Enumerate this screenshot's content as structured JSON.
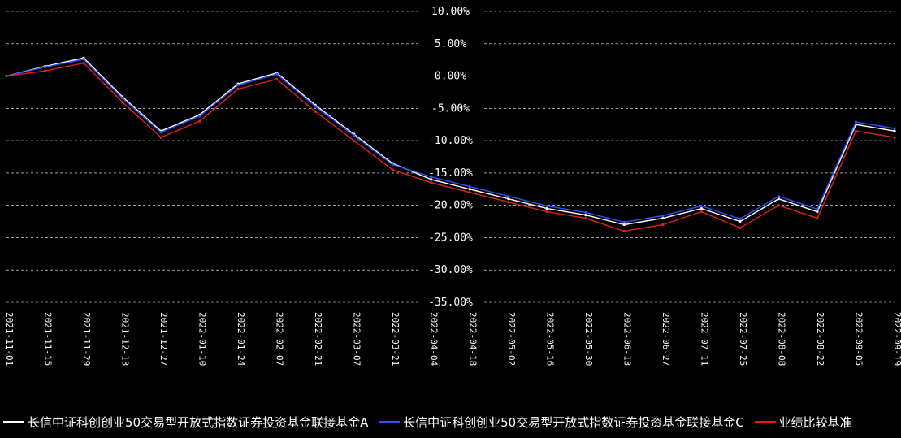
{
  "chart_data": {
    "type": "line",
    "title": "",
    "xlabel": "",
    "ylabel": "",
    "ylim": [
      -35,
      10
    ],
    "yticks": [
      "10.00%",
      "5.00%",
      "0.00%",
      "-5.00%",
      "-10.00%",
      "-15.00%",
      "-20.00%",
      "-25.00%",
      "-30.00%",
      "-35.00%"
    ],
    "ytick_values": [
      10,
      5,
      0,
      -5,
      -10,
      -15,
      -20,
      -25,
      -30,
      -35
    ],
    "grid": true,
    "legend_position": "bottom",
    "x": [
      "2021-11-01",
      "2021-11-15",
      "2021-11-29",
      "2021-12-13",
      "2021-12-27",
      "2022-01-10",
      "2022-01-24",
      "2022-02-07",
      "2022-02-21",
      "2022-03-07",
      "2022-03-21",
      "2022-04-04",
      "2022-04-18",
      "2022-05-02",
      "2022-05-16",
      "2022-05-30",
      "2022-06-13",
      "2022-06-27",
      "2022-07-11",
      "2022-07-25",
      "2022-08-08",
      "2022-08-22",
      "2022-09-05",
      "2022-09-19"
    ],
    "series": [
      {
        "name": "长信中证科创创业50交易型开放式指数证券投资基金联接基金A",
        "color": "#ffffff",
        "values": [
          0,
          1.5,
          2.8,
          -3.2,
          -8.5,
          -6.0,
          -1.2,
          0.5,
          -4.5,
          -9.0,
          -13.5,
          -16.0,
          -17.5,
          -19.0,
          -20.5,
          -21.5,
          -23.0,
          -22.0,
          -20.5,
          -22.5,
          -19.0,
          -21.0,
          -7.5,
          -8.5
        ]
      },
      {
        "name": "长信中证科创创业50交易型开放式指数证券投资基金联接基金C",
        "color": "#3050ff",
        "values": [
          0,
          1.4,
          2.6,
          -3.4,
          -8.7,
          -6.2,
          -1.4,
          0.3,
          -4.7,
          -9.2,
          -13.7,
          -15.6,
          -17.1,
          -18.6,
          -20.1,
          -21.1,
          -22.6,
          -21.6,
          -20.1,
          -22.1,
          -18.6,
          -20.6,
          -7.1,
          -8.1
        ]
      },
      {
        "name": "业绩比较基准",
        "color": "#e02020",
        "values": [
          0,
          0.8,
          2.0,
          -4.0,
          -9.5,
          -7.0,
          -2.0,
          -0.5,
          -5.5,
          -10.0,
          -14.5,
          -16.5,
          -18.0,
          -19.5,
          -21.0,
          -22.0,
          -24.0,
          -23.0,
          -21.0,
          -23.5,
          -20.0,
          -22.0,
          -8.5,
          -9.5
        ]
      }
    ]
  },
  "legend": {
    "item1": "长信中证科创创业50交易型开放式指数证券投资基金联接基金A",
    "item2": "长信中证科创创业50交易型开放式指数证券投资基金联接基金C",
    "item3": "业绩比较基准"
  }
}
